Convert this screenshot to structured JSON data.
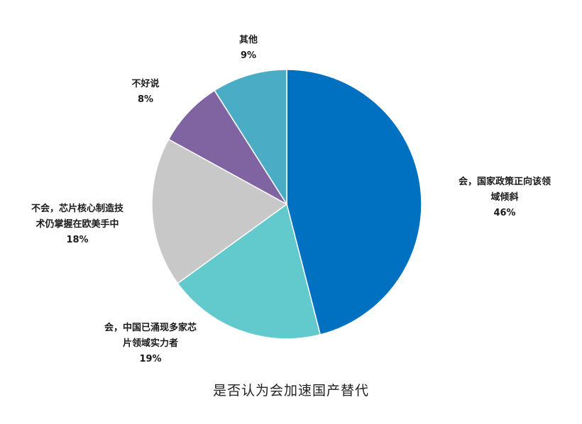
{
  "chart_data": {
    "type": "pie",
    "title": "是否认为会加速国产替代",
    "start_angle_deg": 0,
    "direction": "clockwise",
    "slices": [
      {
        "name": "会，国家政策正向该领域倾斜",
        "label_lines": [
          "会，国家政策正向该领",
          "域倾斜"
        ],
        "value": 46,
        "pct_label": "46%",
        "color": "#0070C0"
      },
      {
        "name": "会，中国已涌现多家芯片领域实力者",
        "label_lines": [
          "会，中国已涌现多家芯",
          "片领域实力者"
        ],
        "value": 19,
        "pct_label": "19%",
        "color": "#62C9CC"
      },
      {
        "name": "不会，芯片核心制造技术仍掌握在欧美手中",
        "label_lines": [
          "不会，芯片核心制造技",
          "术仍掌握在欧美手中"
        ],
        "value": 18,
        "pct_label": "18%",
        "color": "#C8C8C8"
      },
      {
        "name": "不好说",
        "label_lines": [
          "不好说"
        ],
        "value": 8,
        "pct_label": "8%",
        "color": "#8064A2"
      },
      {
        "name": "其他",
        "label_lines": [
          "其他"
        ],
        "value": 9,
        "pct_label": "9%",
        "color": "#4BACC6"
      }
    ]
  }
}
